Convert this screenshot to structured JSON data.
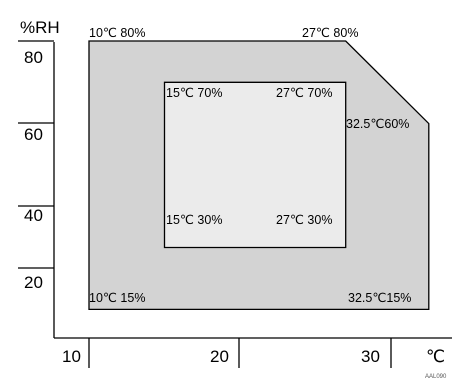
{
  "axes": {
    "y_unit": "%RH",
    "x_unit": "℃",
    "y_ticks": [
      "80",
      "60",
      "40",
      "20"
    ],
    "x_ticks": [
      "10",
      "20",
      "30"
    ]
  },
  "outer_zone": {
    "points": [
      {
        "temp": 10,
        "rh": 80
      },
      {
        "temp": 27,
        "rh": 80
      },
      {
        "temp": 32.5,
        "rh": 60
      },
      {
        "temp": 32.5,
        "rh": 15
      },
      {
        "temp": 10,
        "rh": 15
      }
    ],
    "labels": {
      "top_left": "10℃ 80%",
      "top_right": "27℃ 80%",
      "mid_right": "32.5℃60%",
      "bottom_left": "10℃ 15%",
      "bottom_right": "32.5℃15%"
    },
    "fill_color": "#d3d3d3"
  },
  "inner_zone": {
    "points": [
      {
        "temp": 15,
        "rh": 70
      },
      {
        "temp": 27,
        "rh": 70
      },
      {
        "temp": 27,
        "rh": 30
      },
      {
        "temp": 15,
        "rh": 30
      }
    ],
    "labels": {
      "top_left": "15℃ 70%",
      "top_right": "27℃ 70%",
      "bottom_left": "15℃ 30%",
      "bottom_right": "27℃ 30%"
    },
    "fill_color": "#ebebeb"
  },
  "footer_code": "AAL090"
}
